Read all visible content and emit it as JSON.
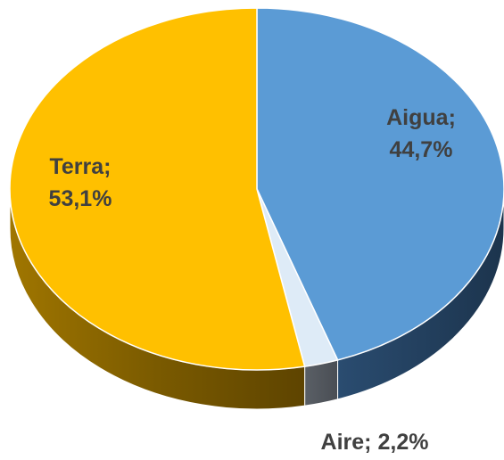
{
  "chart_data": {
    "type": "pie",
    "categories": [
      "Aigua",
      "Aire",
      "Terra"
    ],
    "values": [
      44.7,
      2.2,
      53.1
    ],
    "value_labels": [
      "44,7%",
      "2,2%",
      "53,1%"
    ],
    "label_separator": ";",
    "colors": [
      "#5b9bd5",
      "#deebf7",
      "#ffc000"
    ]
  }
}
